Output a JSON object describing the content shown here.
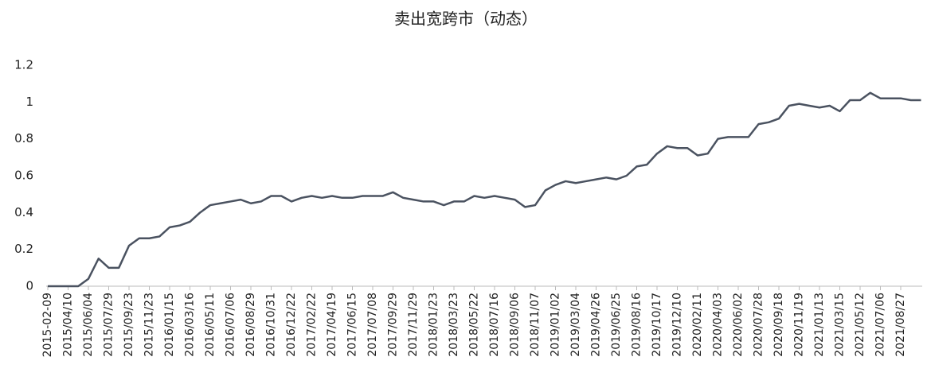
{
  "chart_data": {
    "type": "line",
    "title": "卖出宽跨市（动态）",
    "categories": [
      "2015-02-09",
      null,
      "2015/04/10",
      null,
      "2015/06/04",
      null,
      "2015/07/29",
      null,
      "2015/09/23",
      null,
      "2015/11/23",
      null,
      "2016/01/15",
      null,
      "2016/03/16",
      null,
      "2016/05/11",
      null,
      "2016/07/06",
      null,
      "2016/08/29",
      null,
      "2016/10/31",
      null,
      "2016/12/22",
      null,
      "2017/02/22",
      null,
      "2017/04/19",
      null,
      "2017/06/15",
      null,
      "2017/07/08",
      null,
      "2017/09/29",
      null,
      "2017/11/29",
      null,
      "2018/01/23",
      null,
      "2018/03/23",
      null,
      "2018/05/22",
      null,
      "2018/07/16",
      null,
      "2018/09/06",
      null,
      "2018/11/07",
      null,
      "2019/01/02",
      null,
      "2019/03/04",
      null,
      "2019/04/26",
      null,
      "2019/06/25",
      null,
      "2019/08/16",
      null,
      "2019/10/17",
      null,
      "2019/12/10",
      null,
      "2020/02/11",
      null,
      "2020/04/03",
      null,
      "2020/06/02",
      null,
      "2020/07/28",
      null,
      "2020/09/18",
      null,
      "2020/11/19",
      null,
      "2021/01/13",
      null,
      "2021/03/15",
      null,
      "2021/05/12",
      null,
      "2021/07/06",
      null,
      "2021/08/27",
      null,
      null
    ],
    "values": [
      0,
      0,
      0,
      0,
      0.04,
      0.15,
      0.1,
      0.1,
      0.22,
      0.26,
      0.26,
      0.27,
      0.32,
      0.33,
      0.35,
      0.4,
      0.44,
      0.45,
      0.46,
      0.47,
      0.45,
      0.46,
      0.49,
      0.49,
      0.46,
      0.48,
      0.49,
      0.48,
      0.49,
      0.48,
      0.48,
      0.49,
      0.49,
      0.49,
      0.51,
      0.48,
      0.47,
      0.46,
      0.46,
      0.44,
      0.46,
      0.46,
      0.49,
      0.48,
      0.49,
      0.48,
      0.47,
      0.43,
      0.44,
      0.52,
      0.55,
      0.57,
      0.56,
      0.57,
      0.58,
      0.59,
      0.58,
      0.6,
      0.65,
      0.66,
      0.72,
      0.76,
      0.75,
      0.75,
      0.71,
      0.72,
      0.8,
      0.81,
      0.81,
      0.81,
      0.88,
      0.89,
      0.91,
      0.98,
      0.99,
      0.98,
      0.97,
      0.98,
      0.95,
      1.01,
      1.01,
      1.05,
      1.02,
      1.02,
      1.02,
      1.01,
      1.01
    ],
    "color": "#4a5260",
    "ylim": [
      0,
      1.2
    ],
    "yticks": [
      0,
      0.2,
      0.4,
      0.6,
      0.8,
      1,
      1.2
    ],
    "grid": false
  }
}
